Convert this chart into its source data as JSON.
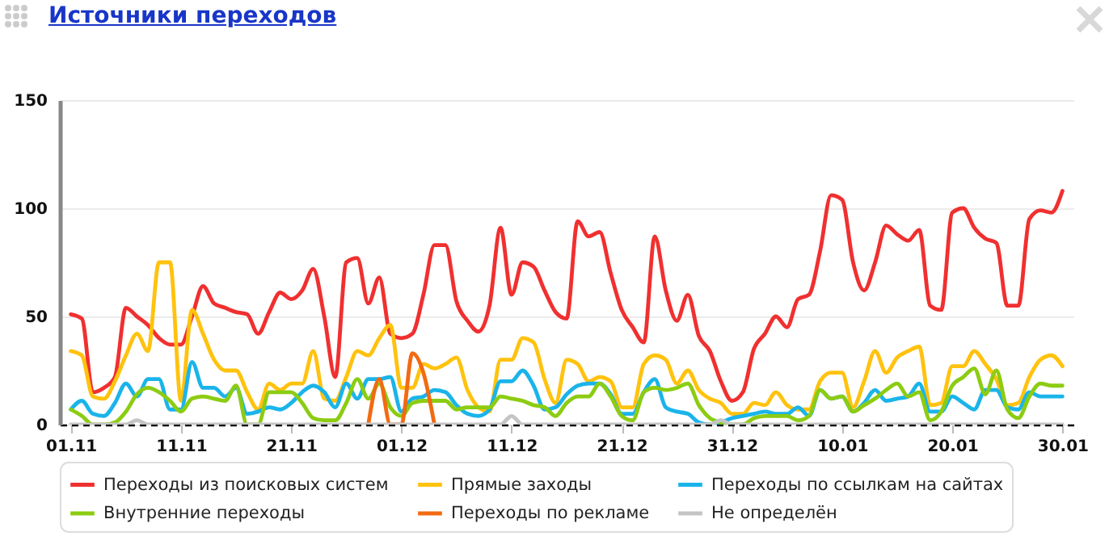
{
  "chart_data": {
    "type": "line",
    "title": "Источники переходов",
    "categories": [
      "01.11",
      null,
      null,
      null,
      null,
      null,
      null,
      null,
      null,
      null,
      "11.11",
      null,
      null,
      null,
      null,
      null,
      null,
      null,
      null,
      null,
      "21.11",
      null,
      null,
      null,
      null,
      null,
      null,
      null,
      null,
      null,
      "01.12",
      null,
      null,
      null,
      null,
      null,
      null,
      null,
      null,
      null,
      "11.12",
      null,
      null,
      null,
      null,
      null,
      null,
      null,
      null,
      null,
      "21.12",
      null,
      null,
      null,
      null,
      null,
      null,
      null,
      null,
      null,
      "31.12",
      null,
      null,
      null,
      null,
      null,
      null,
      null,
      null,
      null,
      "10.01",
      null,
      null,
      null,
      null,
      null,
      null,
      null,
      null,
      null,
      "20.01",
      null,
      null,
      null,
      null,
      null,
      null,
      null,
      null,
      null,
      "30.01"
    ],
    "ylim": [
      0,
      150
    ],
    "yticks": [
      0,
      50,
      100,
      150
    ],
    "grid": "y",
    "legend": "bottom",
    "marker": "none",
    "line_style": "solid",
    "series": [
      {
        "name": "Переходы из поисковых систем",
        "color": "#f03030",
        "values": [
          51,
          49,
          15,
          17,
          22,
          54,
          50,
          46,
          40,
          37,
          37,
          50,
          64,
          56,
          54,
          52,
          51,
          42,
          52,
          61,
          58,
          62,
          72,
          50,
          22,
          75,
          77,
          56,
          68,
          42,
          40,
          42,
          60,
          83,
          83,
          57,
          48,
          43,
          55,
          91,
          60,
          75,
          73,
          62,
          52,
          49,
          94,
          87,
          89,
          70,
          53,
          45,
          38,
          87,
          62,
          48,
          60,
          41,
          34,
          20,
          11,
          15,
          35,
          42,
          50,
          45,
          58,
          60,
          80,
          106,
          104,
          75,
          62,
          75,
          92,
          88,
          85,
          90,
          55,
          53,
          98,
          100,
          91,
          86,
          84,
          55,
          55,
          95,
          99,
          98,
          108
        ]
      },
      {
        "name": "Прямые заходы",
        "color": "#ffc20e",
        "values": [
          34,
          32,
          13,
          12,
          20,
          32,
          42,
          34,
          75,
          75,
          11,
          53,
          42,
          30,
          25,
          25,
          15,
          7,
          19,
          16,
          19,
          19,
          34,
          12,
          11,
          22,
          34,
          32,
          40,
          46,
          17,
          17,
          28,
          26,
          28,
          31,
          16,
          8,
          6,
          30,
          30,
          40,
          38,
          21,
          10,
          30,
          28,
          20,
          22,
          20,
          8,
          8,
          28,
          32,
          30,
          19,
          25,
          16,
          12,
          10,
          5,
          5,
          10,
          9,
          15,
          9,
          7,
          7,
          20,
          24,
          24,
          8,
          20,
          34,
          24,
          31,
          34,
          36,
          9,
          10,
          27,
          27,
          34,
          28,
          21,
          9,
          10,
          22,
          30,
          32,
          27
        ]
      },
      {
        "name": "Переходы по ссылкам на сайтах",
        "color": "#1ab4ea",
        "values": [
          7,
          11,
          5,
          4,
          10,
          19,
          13,
          21,
          21,
          7,
          7,
          29,
          17,
          17,
          13,
          17,
          5,
          6,
          8,
          7,
          10,
          15,
          18,
          15,
          8,
          19,
          12,
          21,
          21,
          22,
          6,
          12,
          13,
          16,
          15,
          9,
          5,
          4,
          7,
          20,
          20,
          25,
          18,
          7,
          8,
          14,
          18,
          19,
          19,
          14,
          5,
          5,
          15,
          21,
          8,
          6,
          5,
          1,
          0,
          1,
          3,
          4,
          5,
          6,
          5,
          5,
          8,
          4,
          16,
          12,
          13,
          6,
          10,
          16,
          11,
          12,
          13,
          19,
          6,
          6,
          13,
          10,
          7,
          16,
          16,
          8,
          7,
          15,
          13,
          13,
          13
        ]
      },
      {
        "name": "Внутренние переходы",
        "color": "#8ccc12",
        "values": [
          7,
          4,
          0,
          0,
          1,
          6,
          14,
          17,
          15,
          11,
          6,
          12,
          13,
          12,
          11,
          18,
          0,
          0,
          15,
          15,
          15,
          10,
          3,
          2,
          2,
          10,
          21,
          12,
          19,
          8,
          4,
          10,
          11,
          11,
          11,
          7,
          8,
          8,
          8,
          13,
          12,
          11,
          9,
          8,
          4,
          10,
          13,
          13,
          19,
          13,
          4,
          2,
          15,
          17,
          16,
          17,
          19,
          9,
          3,
          1,
          0,
          0,
          3,
          4,
          4,
          4,
          2,
          4,
          16,
          12,
          13,
          6,
          9,
          12,
          16,
          19,
          13,
          15,
          2,
          6,
          18,
          22,
          26,
          14,
          25,
          7,
          3,
          13,
          19,
          18,
          18
        ]
      },
      {
        "name": "Переходы по рекламе",
        "color": "#f26a12",
        "values": [
          null,
          null,
          null,
          null,
          null,
          null,
          null,
          null,
          null,
          null,
          null,
          null,
          null,
          null,
          null,
          null,
          null,
          null,
          null,
          null,
          null,
          null,
          null,
          null,
          null,
          null,
          null,
          0,
          21,
          0,
          0,
          33,
          24,
          0,
          null,
          null,
          null,
          null,
          null,
          null,
          null,
          null,
          null,
          null,
          null,
          null,
          null,
          null,
          null,
          null,
          null,
          null,
          null,
          null,
          null,
          null,
          null,
          null,
          null,
          null,
          null,
          null,
          null,
          null,
          null,
          null,
          null,
          null,
          null,
          null,
          null,
          null,
          null,
          null,
          null,
          null,
          null,
          null,
          null,
          null,
          null,
          null,
          null,
          null,
          null,
          null,
          null,
          null,
          null,
          null,
          null
        ]
      },
      {
        "name": "Не определён",
        "color": "#c4c4c4",
        "values": [
          0,
          0,
          0,
          0,
          0,
          0,
          2,
          0,
          0,
          0,
          0,
          0,
          0,
          0,
          0,
          0,
          0,
          0,
          0,
          0,
          0,
          0,
          0,
          0,
          0,
          0,
          0,
          0,
          0,
          0,
          0,
          0,
          0,
          0,
          0,
          0,
          0,
          0,
          0,
          0,
          4,
          0,
          0,
          0,
          0,
          0,
          0,
          0,
          0,
          0,
          0,
          0,
          0,
          0,
          0,
          0,
          0,
          0,
          0,
          2,
          0,
          0,
          0,
          0,
          0,
          0,
          0,
          0,
          0,
          0,
          0,
          0,
          0,
          0,
          0,
          0,
          0,
          0,
          0,
          0,
          0,
          0,
          0,
          0,
          0,
          0,
          0,
          0,
          0,
          0,
          0
        ]
      }
    ]
  }
}
